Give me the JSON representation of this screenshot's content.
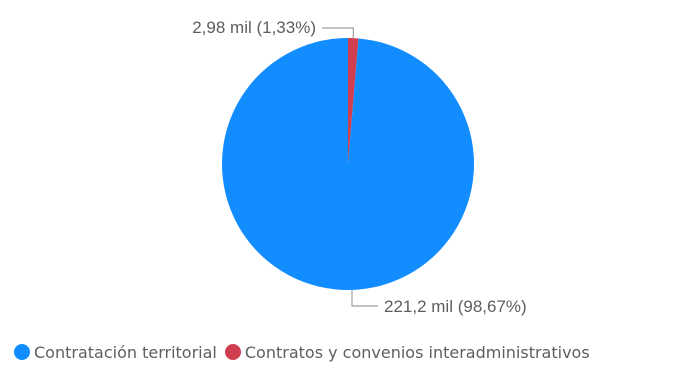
{
  "chart_data": {
    "type": "pie",
    "title": "",
    "slices": [
      {
        "name": "Contratación territorial",
        "value": 221.2,
        "percent": 98.67,
        "label": "221,2 mil (98,67%)",
        "color": "#118DFF"
      },
      {
        "name": "Contratos y convenios interadministrativos",
        "value": 2.98,
        "percent": 1.33,
        "label": "2,98 mil (1,33%)",
        "color": "#D13E50"
      }
    ],
    "legend": {
      "position": "bottom-left",
      "items": [
        {
          "label": "Contratación territorial",
          "color": "#118DFF"
        },
        {
          "label": "Contratos y convenios interadministrativos",
          "color": "#D13E50"
        }
      ]
    }
  }
}
